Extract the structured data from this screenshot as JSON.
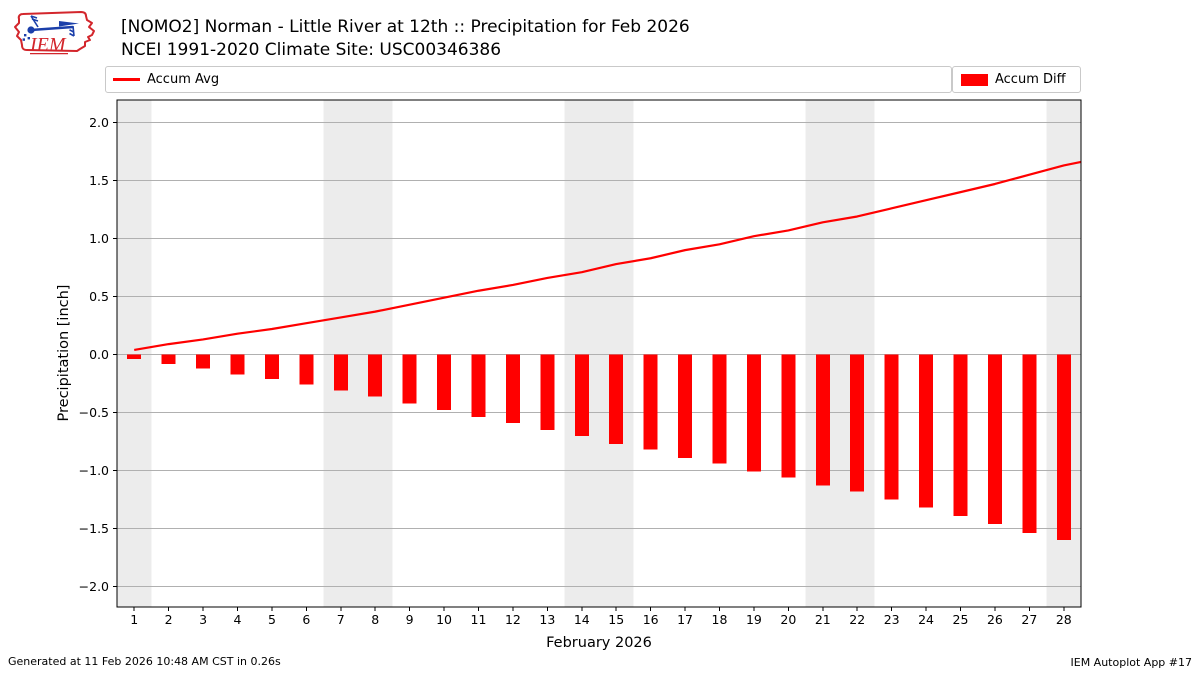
{
  "header": {
    "title": "[NOMO2] Norman - Little River at 12th :: Precipitation for Feb 2026",
    "subtitle": "NCEI 1991-2020 Climate Site: USC00346386"
  },
  "logo": {
    "label": "IEM"
  },
  "legend": {
    "items": [
      {
        "label": "Accum Avg",
        "swatch": "line",
        "color": "#ff0000"
      },
      {
        "label": "Accum Diff",
        "swatch": "rect",
        "color": "#ff0000"
      }
    ]
  },
  "footer": {
    "generated": "Generated at 11 Feb 2026 10:48 AM CST in 0.26s",
    "app": "IEM Autoplot App #17"
  },
  "chart_data": {
    "type": "bar",
    "title": "[NOMO2] Norman - Little River at 12th :: Precipitation for Feb 2026",
    "xlabel": "February 2026",
    "ylabel": "Precipitation [inch]",
    "days": [
      1,
      2,
      3,
      4,
      5,
      6,
      7,
      8,
      9,
      10,
      11,
      12,
      13,
      14,
      15,
      16,
      17,
      18,
      19,
      20,
      21,
      22,
      23,
      24,
      25,
      26,
      27,
      28
    ],
    "series": [
      {
        "name": "Accum Avg",
        "type": "line",
        "color": "#ff0000",
        "values": [
          0.04,
          0.09,
          0.13,
          0.18,
          0.22,
          0.27,
          0.32,
          0.37,
          0.43,
          0.49,
          0.55,
          0.6,
          0.66,
          0.71,
          0.78,
          0.83,
          0.9,
          0.95,
          1.02,
          1.07,
          1.14,
          1.19,
          1.26,
          1.33,
          1.4,
          1.47,
          1.55,
          1.63
        ],
        "clip_end": {
          "x": 28.5,
          "value": 1.66
        }
      },
      {
        "name": "Accum Diff",
        "type": "bar",
        "color": "#ff0000",
        "values": [
          -0.04,
          -0.08,
          -0.12,
          -0.17,
          -0.21,
          -0.26,
          -0.31,
          -0.36,
          -0.42,
          -0.48,
          -0.54,
          -0.59,
          -0.65,
          -0.7,
          -0.77,
          -0.82,
          -0.89,
          -0.94,
          -1.01,
          -1.06,
          -1.13,
          -1.18,
          -1.25,
          -1.32,
          -1.39,
          -1.46,
          -1.54,
          -1.6
        ]
      }
    ],
    "xlim": [
      0.5,
      28.5
    ],
    "ylim": [
      -2.176,
      2.194
    ],
    "y_ticks": [
      2.0,
      1.5,
      1.0,
      0.5,
      0.0,
      -0.5,
      -1.0,
      -1.5,
      -2.0
    ],
    "grid": true,
    "grid_color": "#b0b0b0",
    "weekend_bands": [
      [
        0.5,
        1.5
      ],
      [
        6.5,
        8.5
      ],
      [
        13.5,
        15.5
      ],
      [
        20.5,
        22.5
      ],
      [
        27.5,
        28.5
      ]
    ],
    "band_color": "#ececec",
    "frame_color": "#000000",
    "legend_position": "top, full-width row: Accum Avg left box, Accum Diff right box"
  }
}
